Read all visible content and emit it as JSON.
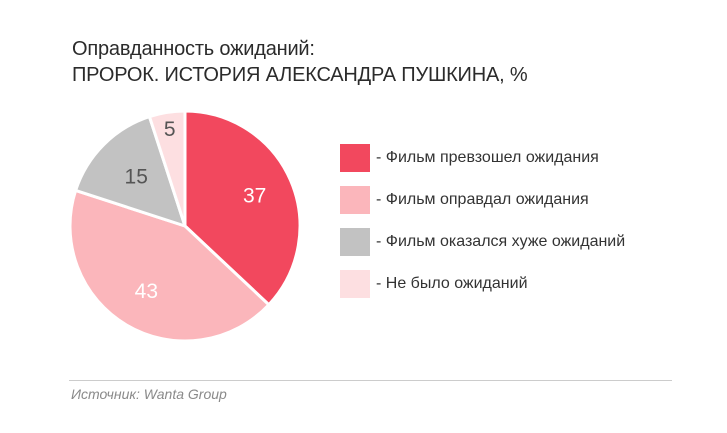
{
  "title": "Оправданность ожиданий:",
  "subtitle": "ПРОРОК. ИСТОРИЯ АЛЕКСАНДРА ПУШКИНА, %",
  "source": "Источник: Wanta Group",
  "chart_data": {
    "type": "pie",
    "title": "Оправданность ожиданий:",
    "subtitle": "ПРОРОК. ИСТОРИЯ АЛЕКСАНДРА ПУШКИНА, %",
    "unit": "%",
    "start_angle_deg": 0,
    "direction": "clockwise",
    "legend_position": "right",
    "slices": [
      {
        "label": "- Фильм превзошел ожидания",
        "value": 37,
        "display": "37",
        "color": "#f2485e"
      },
      {
        "label": "- Фильм оправдал ожидания",
        "value": 43,
        "display": "43",
        "color": "#fbb6bb"
      },
      {
        "label": "- Фильм оказался хуже ожиданий",
        "value": 15,
        "display": "15",
        "color": "#c2c2c2"
      },
      {
        "label": "- Не было ожиданий",
        "value": 5,
        "display": "5",
        "color": "#fddfe1"
      }
    ]
  }
}
